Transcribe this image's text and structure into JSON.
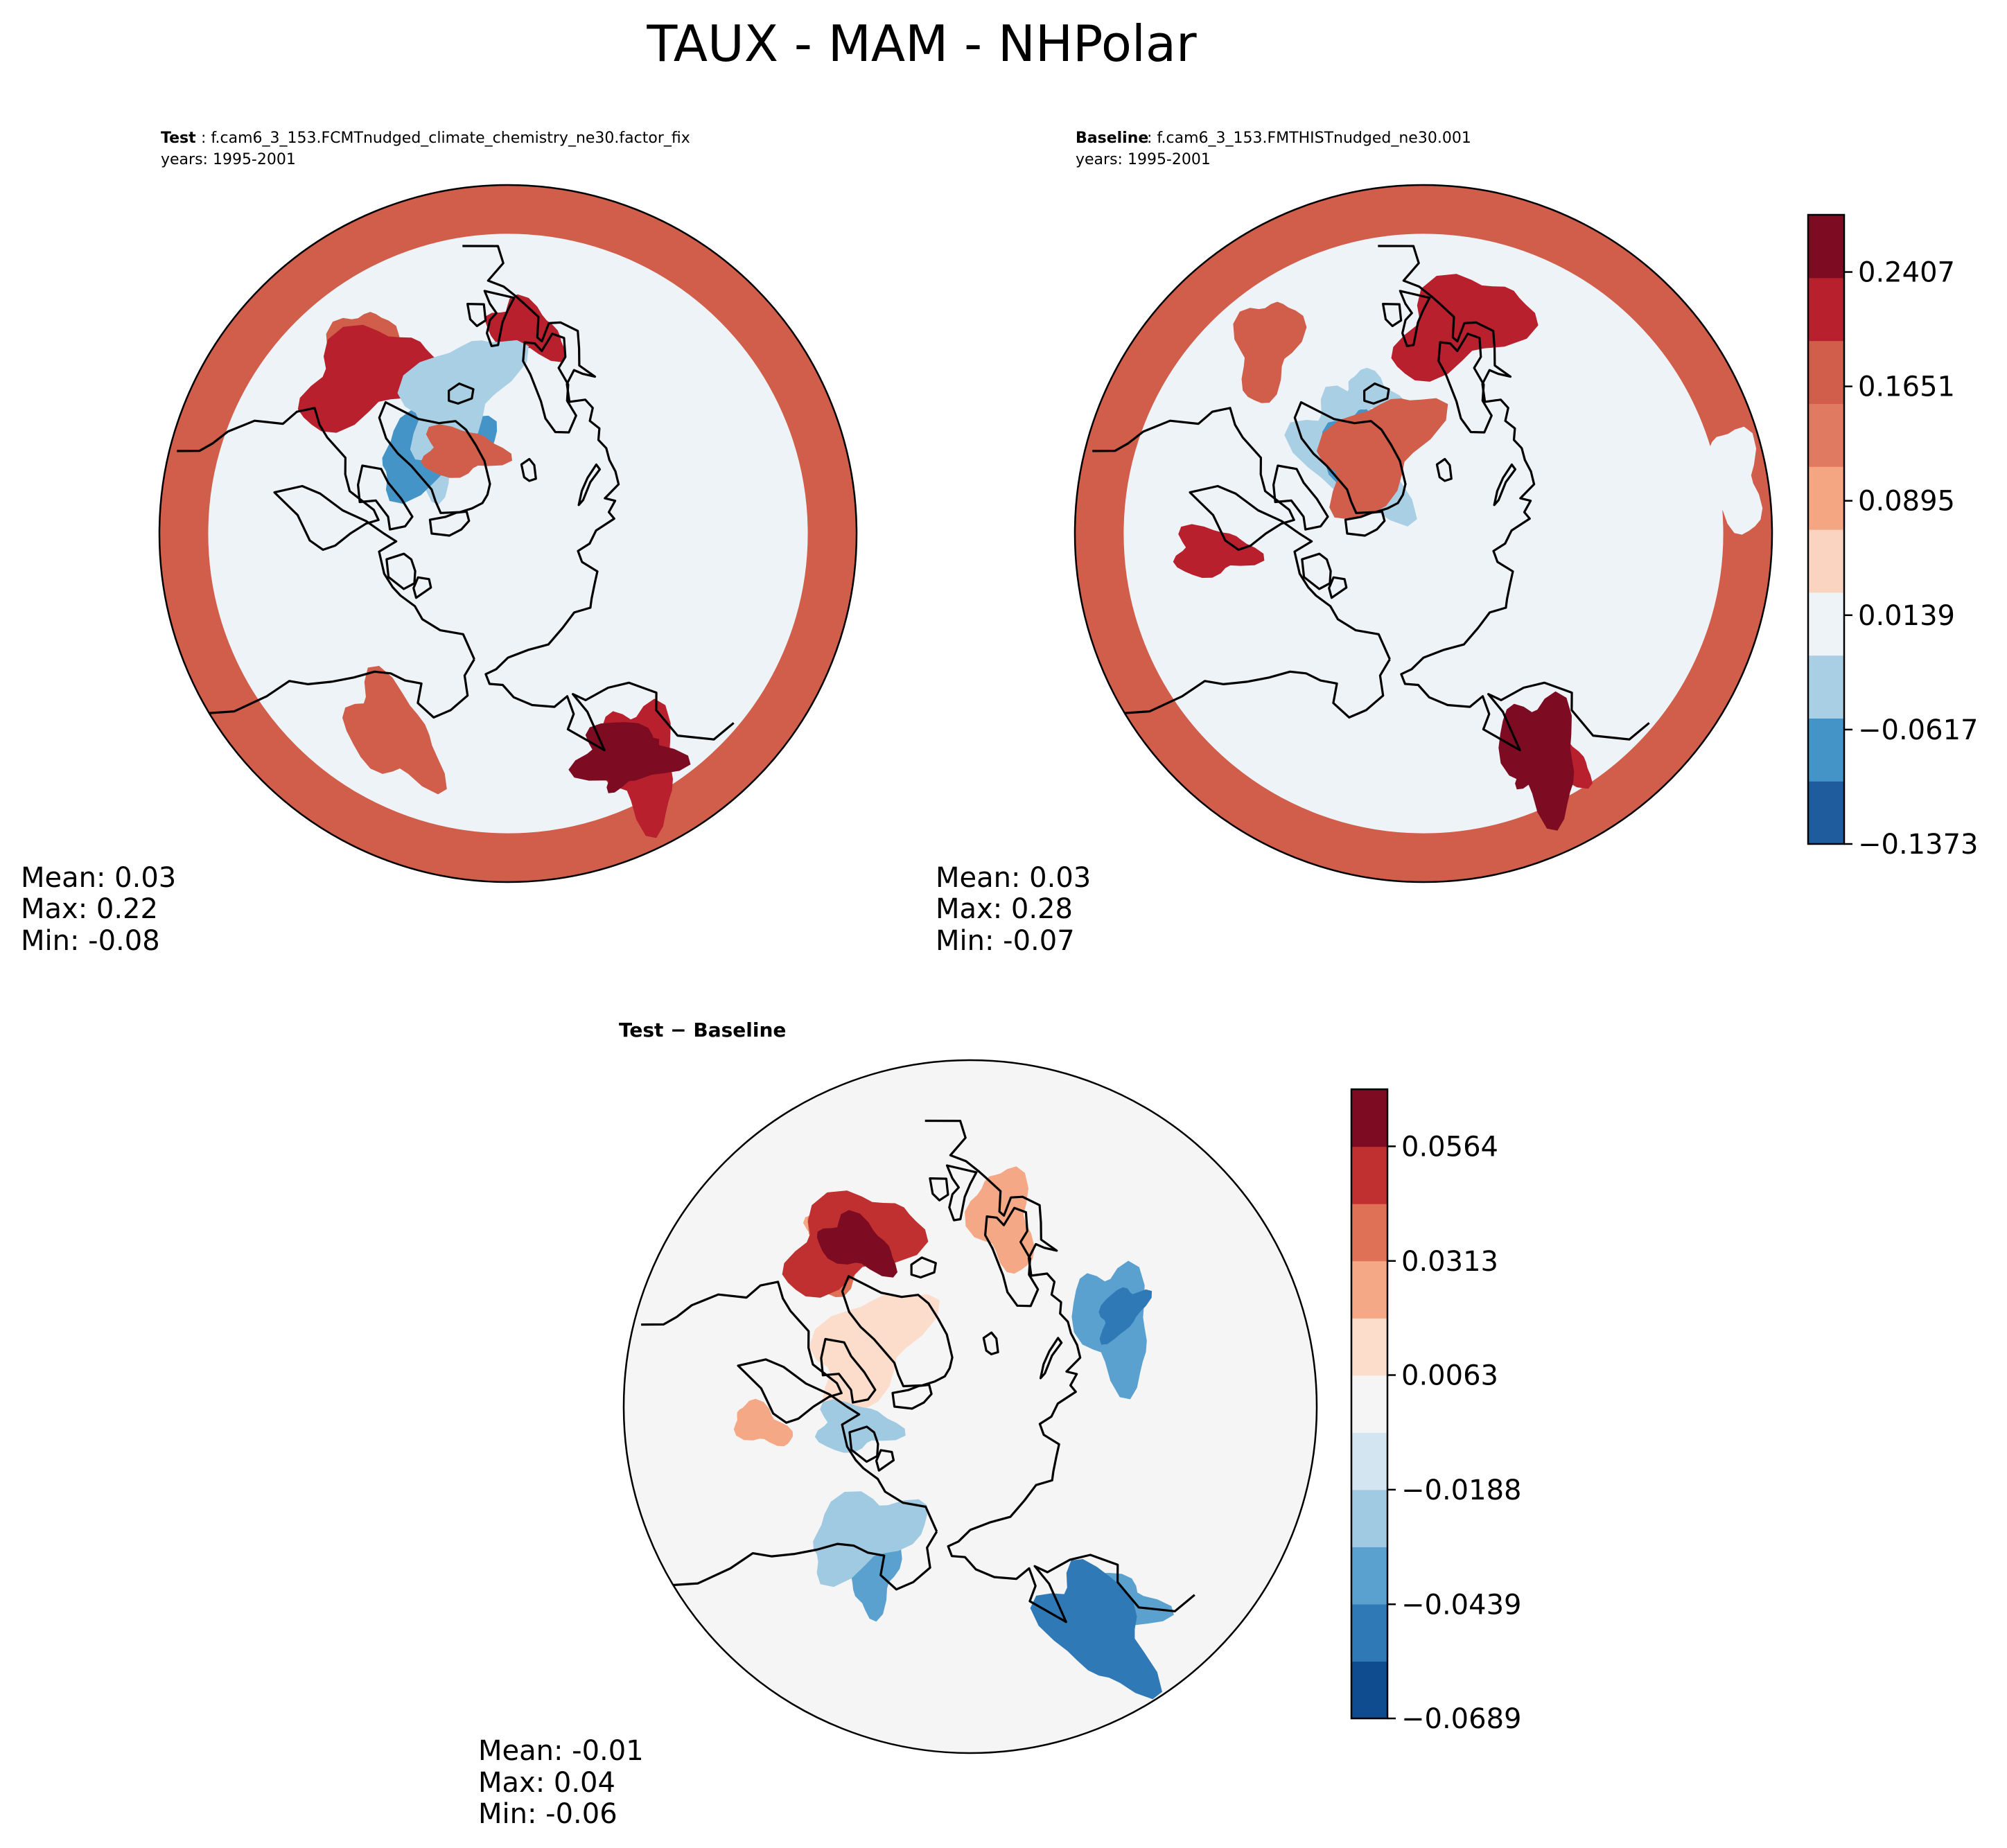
{
  "title": "TAUX - MAM - NHPolar",
  "colors": {
    "levels": [
      "#0f4c8f",
      "#2f79b7",
      "#63a6d0",
      "#a5cde3",
      "#dbe9f3",
      "#f7f7f7",
      "#fbdcca",
      "#f3a685",
      "#d96650",
      "#b71d2b",
      "#6b0820"
    ],
    "top_cmap": [
      "#1f5c9e",
      "#4594c7",
      "#a9cfe5",
      "#eef3f7",
      "#fad4c0",
      "#f4a582",
      "#e07b62",
      "#d15d4b",
      "#b8202d",
      "#7d0b22"
    ],
    "diff_cmap": [
      "#0f4c8f",
      "#2f79b7",
      "#5aa1cf",
      "#9fcae1",
      "#d3e5f1",
      "#f5f5f5",
      "#fcdccb",
      "#f4a885",
      "#df7157",
      "#c03030",
      "#7d0b22"
    ],
    "coast": "#000000"
  },
  "chart_data": [
    {
      "type": "heatmap",
      "projection": "north polar stereographic",
      "label_bold": "Test",
      "label_rest": " : f.cam6_3_153.FCMTnudged_climate_chemistry_ne30.factor_fix",
      "years": "years: 1995-2001",
      "stats": {
        "mean": "Mean:  0.03",
        "max": "Max:  0.22",
        "min": "Min: -0.08"
      },
      "features": [
        {
          "kind": "ring",
          "level": 7
        },
        {
          "kind": "blob",
          "level": 7,
          "lon": -40,
          "lat": 52
        },
        {
          "kind": "blob",
          "level": 8,
          "lon": -42,
          "lat": 55
        },
        {
          "kind": "blob",
          "level": 8,
          "lon": 5,
          "lat": 56
        },
        {
          "kind": "blob",
          "level": 8,
          "lon": 150,
          "lat": 47
        },
        {
          "kind": "blob",
          "level": 9,
          "lon": 152,
          "lat": 48
        },
        {
          "kind": "blob",
          "level": 10,
          "lon": 152,
          "lat": 49
        },
        {
          "kind": "blob",
          "level": 3,
          "lon": -40,
          "lat": 72
        },
        {
          "kind": "blob",
          "level": 2,
          "lon": -42,
          "lat": 72
        },
        {
          "kind": "blob",
          "level": 1,
          "lon": -42,
          "lat": 71
        },
        {
          "kind": "blob",
          "level": 3,
          "lon": 60,
          "lat": 76
        },
        {
          "kind": "blob",
          "level": 3,
          "lon": -135,
          "lat": 68
        },
        {
          "kind": "blob",
          "level": 2,
          "lon": -20,
          "lat": 65
        },
        {
          "kind": "blob",
          "level": 7,
          "lon": -30,
          "lat": 74
        },
        {
          "kind": "blob",
          "level": 7,
          "lon": -150,
          "lat": 52
        }
      ]
    },
    {
      "type": "heatmap",
      "projection": "north polar stereographic",
      "label_bold": "Baseline",
      "label_rest": " : f.cam6_3_153.FMTHISTnudged_ne30.001",
      "years": "years: 1995-2001",
      "stats": {
        "mean": "Mean:  0.03",
        "max": "Max:  0.28",
        "min": "Min: -0.07"
      },
      "features": [
        {
          "kind": "ring",
          "level": 7
        },
        {
          "kind": "blob",
          "level": 7,
          "lon": -40,
          "lat": 50
        },
        {
          "kind": "blob",
          "level": 8,
          "lon": 10,
          "lat": 55
        },
        {
          "kind": "blob",
          "level": 8,
          "lon": 150,
          "lat": 48
        },
        {
          "kind": "blob",
          "level": 9,
          "lon": 152,
          "lat": 49
        },
        {
          "kind": "blob",
          "level": 10,
          "lon": 153,
          "lat": 49
        },
        {
          "kind": "blob",
          "level": 3,
          "lon": -40,
          "lat": 72
        },
        {
          "kind": "blob",
          "level": 2,
          "lon": -42,
          "lat": 72
        },
        {
          "kind": "blob",
          "level": 1,
          "lon": -42,
          "lat": 71
        },
        {
          "kind": "blob",
          "level": 3,
          "lon": 50,
          "lat": 75
        },
        {
          "kind": "blob",
          "level": 2,
          "lon": -20,
          "lat": 65
        },
        {
          "kind": "blob",
          "level": 3,
          "lon": 80,
          "lat": 40
        },
        {
          "kind": "blob",
          "level": 7,
          "lon": -30,
          "lat": 74
        },
        {
          "kind": "blob",
          "level": 8,
          "lon": -95,
          "lat": 55
        }
      ]
    },
    {
      "type": "heatmap",
      "projection": "north polar stereographic",
      "label_bold": "Test − Baseline",
      "stats": {
        "mean": "Mean: -0.01",
        "max": "Max:  0.04",
        "min": "Min: -0.06"
      },
      "features": [
        {
          "kind": "blob",
          "level": 7,
          "lon": -38,
          "lat": 53
        },
        {
          "kind": "blob",
          "level": 8,
          "lon": -38,
          "lat": 55
        },
        {
          "kind": "blob",
          "level": 9,
          "lon": -36,
          "lat": 56
        },
        {
          "kind": "blob",
          "level": 10,
          "lon": -35,
          "lat": 57
        },
        {
          "kind": "blob",
          "level": 2,
          "lon": 60,
          "lat": 62
        },
        {
          "kind": "blob",
          "level": 1,
          "lon": 58,
          "lat": 60
        },
        {
          "kind": "blob",
          "level": 2,
          "lon": 145,
          "lat": 50
        },
        {
          "kind": "blob",
          "level": 1,
          "lon": 150,
          "lat": 48
        },
        {
          "kind": "blob",
          "level": 2,
          "lon": -150,
          "lat": 58
        },
        {
          "kind": "blob",
          "level": 3,
          "lon": -140,
          "lat": 62
        },
        {
          "kind": "blob",
          "level": 7,
          "lon": -95,
          "lat": 55
        },
        {
          "kind": "blob",
          "level": 7,
          "lon": 10,
          "lat": 58
        },
        {
          "kind": "blob",
          "level": 6,
          "lon": -60,
          "lat": 70
        },
        {
          "kind": "blob",
          "level": 3,
          "lon": -100,
          "lat": 70
        }
      ]
    }
  ],
  "colorbars": [
    {
      "name": "abs",
      "levels": [
        "−0.1373",
        "−0.0617",
        "0.0139",
        "0.0895",
        "0.1651",
        "0.2407"
      ],
      "values": [
        -0.1373,
        -0.0617,
        0.0139,
        0.0895,
        0.1651,
        0.2407
      ],
      "vmin": -0.1373,
      "vmax": 0.2785
    },
    {
      "name": "diff",
      "levels": [
        "−0.0689",
        "−0.0439",
        "−0.0188",
        "0.0063",
        "0.0313",
        "0.0564"
      ],
      "values": [
        -0.0689,
        -0.0439,
        -0.0188,
        0.0063,
        0.0313,
        0.0564
      ],
      "vmin": -0.0689,
      "vmax": 0.0689
    }
  ]
}
